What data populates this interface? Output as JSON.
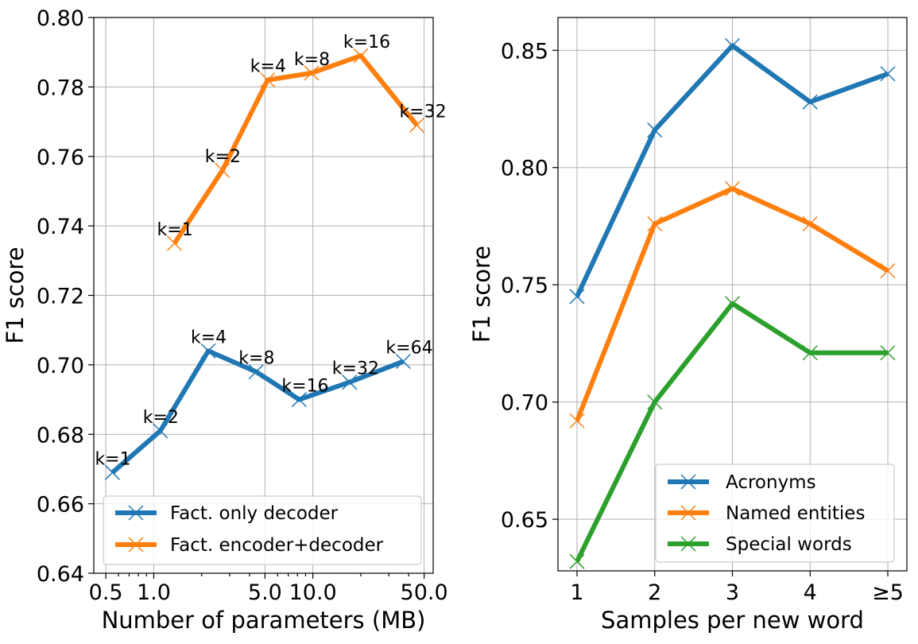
{
  "chart_data": [
    {
      "type": "line",
      "xscale": "log",
      "xlabel": "Number of parameters (MB)",
      "ylabel": "F1 score",
      "ylim": [
        0.64,
        0.8
      ],
      "xlim": [
        0.42,
        57
      ],
      "yticks": [
        0.64,
        0.66,
        0.68,
        0.7,
        0.72,
        0.74,
        0.76,
        0.78,
        0.8
      ],
      "ytick_labels": [
        "0.64",
        "0.66",
        "0.68",
        "0.70",
        "0.72",
        "0.74",
        "0.76",
        "0.78",
        "0.80"
      ],
      "xticks": [
        0.5,
        1.0,
        5.0,
        10.0,
        50.0
      ],
      "xtick_labels": [
        "0.5",
        "1.0",
        "5.0",
        "10.0",
        "50.0"
      ],
      "grid": true,
      "legend_position": "lower-right",
      "series": [
        {
          "name": "Fact. only decoder",
          "color": "#1f77b4",
          "x": [
            0.55,
            1.1,
            2.2,
            4.4,
            8.2,
            17.0,
            37.0
          ],
          "y": [
            0.669,
            0.681,
            0.704,
            0.698,
            0.69,
            0.695,
            0.701
          ],
          "labels": [
            "k=1",
            "k=2",
            "k=4",
            "k=8",
            "k=16",
            "k=32",
            "k=64"
          ]
        },
        {
          "name": "Fact. encoder+decoder",
          "color": "#ff7f0e",
          "x": [
            1.35,
            2.7,
            5.2,
            9.8,
            20.0,
            45.0
          ],
          "y": [
            0.735,
            0.756,
            0.782,
            0.784,
            0.789,
            0.769
          ],
          "labels": [
            "k=1",
            "k=2",
            "k=4",
            "k=8",
            "k=16",
            "k=32"
          ]
        }
      ]
    },
    {
      "type": "line",
      "xlabel": "Samples per new word",
      "ylabel": "F1 score",
      "ylim": [
        0.628,
        0.864
      ],
      "categories": [
        "1",
        "2",
        "3",
        "4",
        "≥5"
      ],
      "yticks": [
        0.65,
        0.7,
        0.75,
        0.8,
        0.85
      ],
      "ytick_labels": [
        "0.65",
        "0.70",
        "0.75",
        "0.80",
        "0.85"
      ],
      "grid": true,
      "legend_position": "lower-right",
      "series": [
        {
          "name": "Acronyms",
          "color": "#1f77b4",
          "values": [
            0.745,
            0.816,
            0.852,
            0.828,
            0.84
          ]
        },
        {
          "name": "Named entities",
          "color": "#ff7f0e",
          "values": [
            0.692,
            0.776,
            0.791,
            0.776,
            0.756
          ]
        },
        {
          "name": "Special words",
          "color": "#2ca02c",
          "values": [
            0.632,
            0.7,
            0.742,
            0.721,
            0.721
          ]
        }
      ]
    }
  ]
}
